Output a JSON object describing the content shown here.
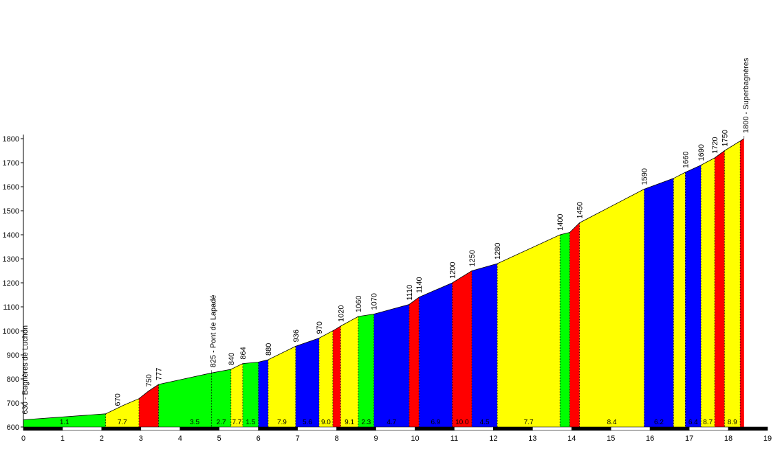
{
  "chart_data": {
    "type": "area",
    "title": "",
    "xlabel": "",
    "ylabel": "",
    "xlim": [
      0,
      19
    ],
    "ylim": [
      600,
      1800
    ],
    "x_ticks": [
      "0",
      "1",
      "2",
      "3",
      "4",
      "5",
      "6",
      "7",
      "8",
      "9",
      "10",
      "11",
      "12",
      "13",
      "14",
      "15",
      "16",
      "17",
      "18",
      "19"
    ],
    "y_ticks": [
      "600",
      "700",
      "800",
      "900",
      "1000",
      "1100",
      "1200",
      "1300",
      "1400",
      "1500",
      "1600",
      "1700",
      "1800"
    ],
    "profile": [
      {
        "x": 0,
        "y": 630
      },
      {
        "x": 2.1,
        "y": 655
      },
      {
        "x": 2.55,
        "y": 690
      },
      {
        "x": 2.95,
        "y": 718
      },
      {
        "x": 3.2,
        "y": 750
      },
      {
        "x": 3.45,
        "y": 777
      },
      {
        "x": 4.8,
        "y": 825
      },
      {
        "x": 5.3,
        "y": 840
      },
      {
        "x": 5.6,
        "y": 864
      },
      {
        "x": 6.0,
        "y": 870
      },
      {
        "x": 6.25,
        "y": 880
      },
      {
        "x": 6.95,
        "y": 936
      },
      {
        "x": 7.55,
        "y": 970
      },
      {
        "x": 7.95,
        "y": 1005
      },
      {
        "x": 8.1,
        "y": 1020
      },
      {
        "x": 8.55,
        "y": 1060
      },
      {
        "x": 8.95,
        "y": 1070
      },
      {
        "x": 9.85,
        "y": 1110
      },
      {
        "x": 10.1,
        "y": 1140
      },
      {
        "x": 10.95,
        "y": 1200
      },
      {
        "x": 11.45,
        "y": 1250
      },
      {
        "x": 12.1,
        "y": 1280
      },
      {
        "x": 13.7,
        "y": 1400
      },
      {
        "x": 13.95,
        "y": 1410
      },
      {
        "x": 14.2,
        "y": 1450
      },
      {
        "x": 15.85,
        "y": 1590
      },
      {
        "x": 16.6,
        "y": 1635
      },
      {
        "x": 16.9,
        "y": 1660
      },
      {
        "x": 17.3,
        "y": 1690
      },
      {
        "x": 17.65,
        "y": 1720
      },
      {
        "x": 17.9,
        "y": 1750
      },
      {
        "x": 18.4,
        "y": 1800
      }
    ],
    "segments": [
      {
        "x0": 0,
        "x1": 2.1,
        "color": "#00ff00",
        "grade": "1.1"
      },
      {
        "x0": 2.1,
        "x1": 2.95,
        "color": "#ffff00",
        "grade": "7.7"
      },
      {
        "x0": 2.95,
        "x1": 3.45,
        "color": "#ff0000",
        "grade": ""
      },
      {
        "x0": 3.45,
        "x1": 5.3,
        "color": "#00ff00",
        "grade": "3.5"
      },
      {
        "x0": 4.8,
        "x1": 5.3,
        "color": "#00ff00",
        "grade": "2.7"
      },
      {
        "x0": 5.3,
        "x1": 5.6,
        "color": "#ffff00",
        "grade": "7.7"
      },
      {
        "x0": 5.6,
        "x1": 6.0,
        "color": "#00ff00",
        "grade": "1.5"
      },
      {
        "x0": 6.0,
        "x1": 6.25,
        "color": "#0000ff",
        "grade": ""
      },
      {
        "x0": 6.25,
        "x1": 6.95,
        "color": "#ffff00",
        "grade": "7.9"
      },
      {
        "x0": 6.95,
        "x1": 7.55,
        "color": "#0000ff",
        "grade": "5.6"
      },
      {
        "x0": 7.55,
        "x1": 7.9,
        "color": "#ffff00",
        "grade": "9.0"
      },
      {
        "x0": 7.9,
        "x1": 8.1,
        "color": "#ff0000",
        "grade": ""
      },
      {
        "x0": 8.1,
        "x1": 8.55,
        "color": "#ffff00",
        "grade": "9.1"
      },
      {
        "x0": 8.55,
        "x1": 8.95,
        "color": "#00ff00",
        "grade": "2.3"
      },
      {
        "x0": 8.95,
        "x1": 9.85,
        "color": "#0000ff",
        "grade": "4.7"
      },
      {
        "x0": 9.85,
        "x1": 10.1,
        "color": "#ff0000",
        "grade": ""
      },
      {
        "x0": 10.1,
        "x1": 10.95,
        "color": "#0000ff",
        "grade": "6.9"
      },
      {
        "x0": 10.95,
        "x1": 11.45,
        "color": "#ff0000",
        "grade": "10.0"
      },
      {
        "x0": 11.45,
        "x1": 12.1,
        "color": "#0000ff",
        "grade": "4.5"
      },
      {
        "x0": 12.1,
        "x1": 13.7,
        "color": "#ffff00",
        "grade": "7.7"
      },
      {
        "x0": 13.7,
        "x1": 13.95,
        "color": "#00ff00",
        "grade": ""
      },
      {
        "x0": 13.95,
        "x1": 14.2,
        "color": "#ff0000",
        "grade": ""
      },
      {
        "x0": 14.2,
        "x1": 15.85,
        "color": "#ffff00",
        "grade": "8.4"
      },
      {
        "x0": 15.85,
        "x1": 16.6,
        "color": "#0000ff",
        "grade": "6.2"
      },
      {
        "x0": 16.6,
        "x1": 16.9,
        "color": "#ffff00",
        "grade": ""
      },
      {
        "x0": 16.9,
        "x1": 17.3,
        "color": "#0000ff",
        "grade": "6.4"
      },
      {
        "x0": 17.3,
        "x1": 17.65,
        "color": "#ffff00",
        "grade": "8.7"
      },
      {
        "x0": 17.65,
        "x1": 17.9,
        "color": "#ff0000",
        "grade": ""
      },
      {
        "x0": 17.9,
        "x1": 18.3,
        "color": "#ffff00",
        "grade": "8.9"
      },
      {
        "x0": 18.3,
        "x1": 18.4,
        "color": "#ff0000",
        "grade": ""
      }
    ],
    "altitude_labels": [
      {
        "x": 2.4,
        "y": 670,
        "text": "670"
      },
      {
        "x": 3.2,
        "y": 750,
        "text": "750"
      },
      {
        "x": 3.45,
        "y": 777,
        "text": "777"
      },
      {
        "x": 5.3,
        "y": 840,
        "text": "840"
      },
      {
        "x": 5.6,
        "y": 864,
        "text": "864"
      },
      {
        "x": 6.25,
        "y": 880,
        "text": "880"
      },
      {
        "x": 6.95,
        "y": 936,
        "text": "936"
      },
      {
        "x": 7.55,
        "y": 970,
        "text": "970"
      },
      {
        "x": 8.1,
        "y": 1020,
        "text": "1020"
      },
      {
        "x": 8.55,
        "y": 1060,
        "text": "1060"
      },
      {
        "x": 8.95,
        "y": 1070,
        "text": "1070"
      },
      {
        "x": 9.85,
        "y": 1110,
        "text": "1110"
      },
      {
        "x": 10.1,
        "y": 1140,
        "text": "1140"
      },
      {
        "x": 10.95,
        "y": 1200,
        "text": "1200"
      },
      {
        "x": 11.45,
        "y": 1250,
        "text": "1250"
      },
      {
        "x": 12.1,
        "y": 1280,
        "text": "1280"
      },
      {
        "x": 13.7,
        "y": 1400,
        "text": "1400"
      },
      {
        "x": 14.2,
        "y": 1450,
        "text": "1450"
      },
      {
        "x": 15.85,
        "y": 1590,
        "text": "1590"
      },
      {
        "x": 16.9,
        "y": 1660,
        "text": "1660"
      },
      {
        "x": 17.3,
        "y": 1690,
        "text": "1690"
      },
      {
        "x": 17.65,
        "y": 1720,
        "text": "1720"
      },
      {
        "x": 17.9,
        "y": 1750,
        "text": "1750"
      }
    ],
    "place_labels": [
      {
        "x": 0,
        "y": 630,
        "text": "630 - Bagnères de Luchon"
      },
      {
        "x": 4.8,
        "y": 825,
        "text": "825 - Pont de Lapadé"
      },
      {
        "x": 18.4,
        "y": 1800,
        "text": "1800 - Superbagnères"
      }
    ],
    "colors": {
      "green": "#00ff00",
      "yellow": "#ffff00",
      "red": "#ff0000",
      "blue": "#0000ff",
      "axis": "#000000"
    }
  }
}
